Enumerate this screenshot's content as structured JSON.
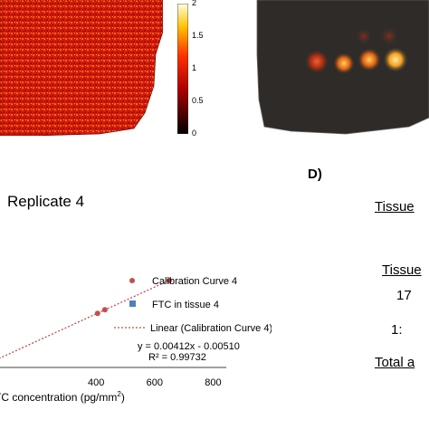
{
  "colorbar": {
    "ticks": [
      "2",
      "1.5",
      "1",
      "0.5",
      "0"
    ],
    "values": [
      2,
      1.5,
      1,
      0.5,
      0
    ],
    "range": [
      0,
      2
    ]
  },
  "panel_d": {
    "label": "D)",
    "rows": [
      {
        "text": "Tissue",
        "underline": true
      },
      {
        "text": "Tissue",
        "underline": true
      },
      {
        "text": "17",
        "underline": false
      },
      {
        "text": "1:",
        "underline": false
      },
      {
        "text": "Total a",
        "underline": true
      }
    ]
  },
  "chart_data": {
    "type": "scatter",
    "title": "Replicate 4",
    "xlabel": "TC concentration (pg/mm",
    "xlabel_sup": "2",
    "xlabel_close": ")",
    "xlim": [
      0,
      800
    ],
    "x_ticks": [
      "400",
      "600",
      "800"
    ],
    "x_tick_values": [
      400,
      600,
      800
    ],
    "series": [
      {
        "name": "Calibration Curve 4",
        "marker": "circle",
        "color": "#c0504d",
        "x": [
          405,
          430,
          650
        ],
        "y": [
          1.66,
          1.77,
          2.67
        ]
      },
      {
        "name": "FTC in tissue 4",
        "marker": "square",
        "color": "#4f81bd",
        "x": [],
        "y": []
      }
    ],
    "trendline": {
      "name": "Linear (Calibration Curve 4)",
      "slope": 0.00412,
      "intercept": -0.0051
    },
    "equation": "y = 0.00412x - 0.00510",
    "r_squared": "R² = 0.99732",
    "legend_position": "right"
  }
}
